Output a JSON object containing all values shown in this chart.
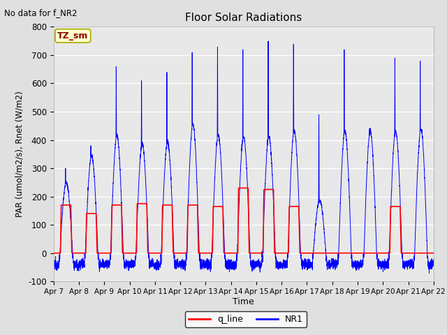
{
  "title": "Floor Solar Radiations",
  "note": "No data for f_NR2",
  "xlabel": "Time",
  "ylabel": "PAR (umol/m2/s), Rnet (W/m2)",
  "ylim": [
    -100,
    800
  ],
  "yticks": [
    -100,
    0,
    100,
    200,
    300,
    400,
    500,
    600,
    700,
    800
  ],
  "xtick_labels": [
    "Apr 7",
    "Apr 8",
    "Apr 9",
    "Apr 10",
    "Apr 11",
    "Apr 12",
    "Apr 13",
    "Apr 14",
    "Apr 15",
    "Apr 16",
    "Apr 17",
    "Apr 18",
    "Apr 19",
    "Apr 20",
    "Apr 21",
    "Apr 22"
  ],
  "legend_labels": [
    "q_line",
    "NR1"
  ],
  "fig_bg_color": "#e0e0e0",
  "plot_bg_color": "#e8e8e8",
  "annotation_text": "TZ_sm",
  "annotation_bg": "#ffffcc",
  "annotation_border": "#aaaa00",
  "n_days": 15,
  "red_peak_values": [
    170,
    140,
    170,
    175,
    170,
    170,
    165,
    230,
    225,
    165,
    0,
    0,
    0,
    165,
    0
  ],
  "blue_peak_values": [
    300,
    380,
    660,
    610,
    640,
    710,
    730,
    720,
    750,
    740,
    490,
    720,
    440,
    690,
    680
  ],
  "blue_broad_peaks": [
    250,
    345,
    415,
    385,
    390,
    455,
    415,
    410,
    410,
    430,
    185,
    430,
    430,
    430,
    435
  ],
  "night_blue_mean": -40,
  "night_blue_std": 12
}
